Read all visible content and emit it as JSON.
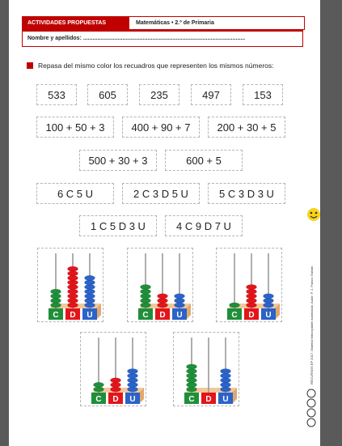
{
  "header": {
    "activities_label": "ACTIVIDADES PROPUESTAS",
    "subject_label": "Matemáticas • 2.º de Primaria",
    "name_label": "Nombre y apellidos: ......................................................................................................."
  },
  "instruction": "Repasa del mismo color los recuadros que representen los mismos números:",
  "numbers": [
    "533",
    "605",
    "235",
    "497",
    "153"
  ],
  "sums_row1": [
    "100 + 50 + 3",
    "400 + 90 + 7",
    "200 + 30 + 5"
  ],
  "sums_row2": [
    "500 + 30 + 3",
    "600 + 5"
  ],
  "units_row1": [
    "6 C 5 U",
    "2 C 3 D 5 U",
    "5 C 3 D 3 U"
  ],
  "units_row2": [
    "1 C 5 D 3 U",
    "4 C 9 D 7 U"
  ],
  "abacus_labels": {
    "c": "C",
    "d": "D",
    "u": "U"
  },
  "abacus_values": [
    {
      "c": 4,
      "d": 9,
      "u": 7
    },
    {
      "c": 5,
      "d": 3,
      "u": 3
    },
    {
      "c": 1,
      "d": 5,
      "u": 3
    },
    {
      "c": 2,
      "d": 3,
      "u": 5
    },
    {
      "c": 6,
      "d": 0,
      "u": 5
    }
  ],
  "colors": {
    "brand": "#c00000",
    "hundreds": "#1f8f3a",
    "tens": "#e3151a",
    "units": "#2a63c9"
  },
  "sidebar_text": "RECURSOS EP 2017. Material fotocopiable autorizado. Autor: F. J. Franco Galván"
}
